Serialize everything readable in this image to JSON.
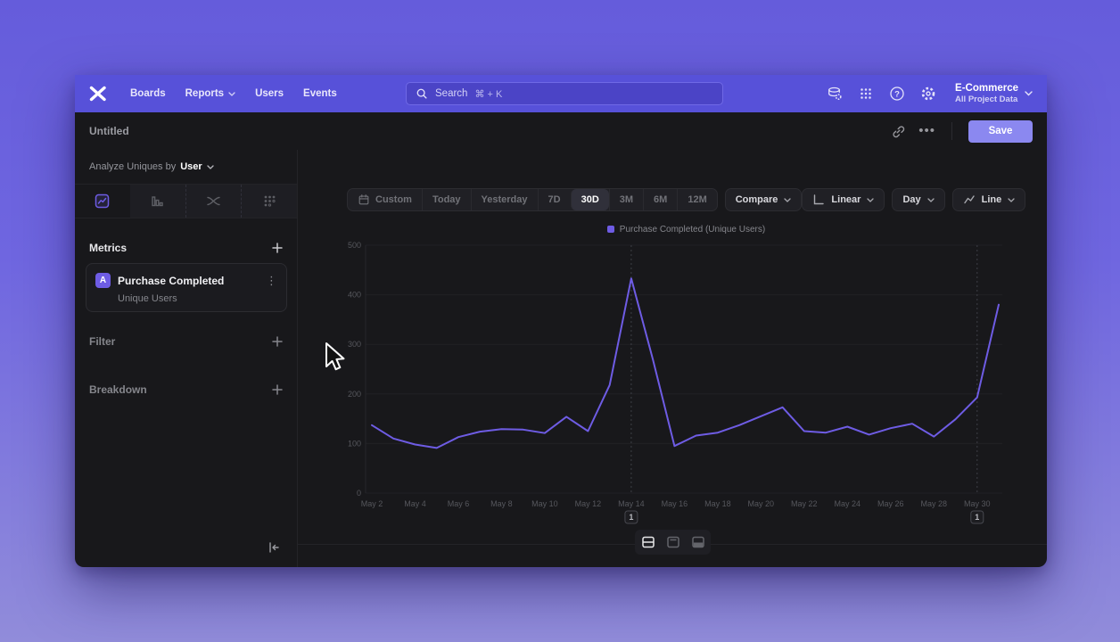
{
  "nav": {
    "items": [
      {
        "label": "Boards",
        "has_dropdown": false
      },
      {
        "label": "Reports",
        "has_dropdown": true
      },
      {
        "label": "Users",
        "has_dropdown": false
      },
      {
        "label": "Events",
        "has_dropdown": false
      }
    ],
    "search": {
      "placeholder": "Search",
      "shortcut": "⌘ + K"
    },
    "project": {
      "name": "E-Commerce",
      "scope": "All Project Data"
    }
  },
  "header": {
    "title": "Untitled",
    "save_label": "Save"
  },
  "sidebar": {
    "analyze_prefix": "Analyze Uniques by",
    "analyze_value": "User",
    "tabs": [
      {
        "name": "insights",
        "selected": true
      },
      {
        "name": "funnels",
        "selected": false
      },
      {
        "name": "flows",
        "selected": false
      },
      {
        "name": "retention",
        "selected": false
      }
    ],
    "metrics_title": "Metrics",
    "metrics": [
      {
        "badge": "A",
        "event": "Purchase Completed",
        "measure": "Unique Users"
      }
    ],
    "filter_label": "Filter",
    "breakdown_label": "Breakdown"
  },
  "toolbar": {
    "date_ranges": [
      "Custom",
      "Today",
      "Yesterday",
      "7D",
      "30D",
      "3M",
      "6M",
      "12M"
    ],
    "active_range": "30D",
    "compare_label": "Compare",
    "scale_label": "Linear",
    "interval_label": "Day",
    "chart_type_label": "Line"
  },
  "chart_data": {
    "type": "line",
    "legend": "Purchase Completed (Unique Users)",
    "legend_position": "top-center",
    "grid": "horizontal",
    "ylim": [
      0,
      500
    ],
    "y_ticks": [
      0,
      100,
      200,
      300,
      400,
      500
    ],
    "x_tick_step": 2,
    "x": [
      "May 2",
      "May 3",
      "May 4",
      "May 5",
      "May 6",
      "May 7",
      "May 8",
      "May 9",
      "May 10",
      "May 11",
      "May 12",
      "May 13",
      "May 14",
      "May 15",
      "May 16",
      "May 17",
      "May 18",
      "May 19",
      "May 20",
      "May 21",
      "May 22",
      "May 23",
      "May 24",
      "May 25",
      "May 26",
      "May 27",
      "May 28",
      "May 29",
      "May 30",
      "May 31"
    ],
    "series": [
      {
        "name": "Purchase Completed (Unique Users)",
        "color": "#6e5ce4",
        "values": [
          137,
          110,
          98,
          91,
          113,
          124,
          129,
          128,
          121,
          154,
          125,
          218,
          433,
          270,
          95,
          116,
          122,
          137,
          155,
          173,
          125,
          122,
          134,
          118,
          131,
          140,
          114,
          149,
          193,
          380
        ]
      }
    ],
    "annotations": [
      {
        "label": "1",
        "x": "May 14"
      },
      {
        "label": "1",
        "x": "May 30"
      }
    ]
  },
  "footer": {
    "view_modes": [
      "split",
      "chart",
      "table"
    ],
    "active_view": "split"
  },
  "colors": {
    "accent": "#6e5ce4",
    "nav_bar": "#5751d9",
    "save_button": "#8b88f0",
    "window_bg": "#18181b"
  }
}
